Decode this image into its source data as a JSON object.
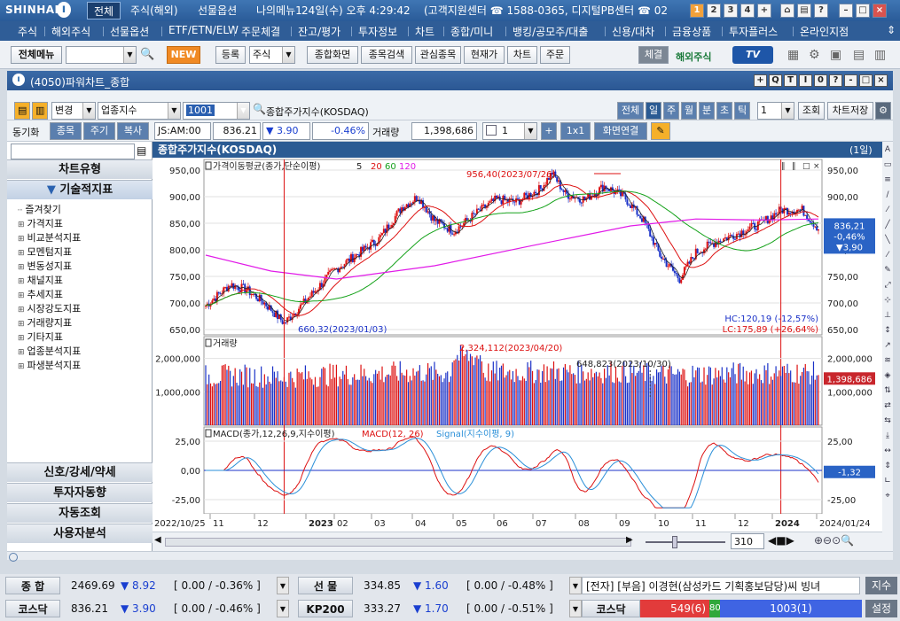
{
  "titlebar": {
    "logo": "SHINHAN",
    "tabs": [
      "전체",
      "주식(해외)",
      "선물옵션",
      "나의메뉴1"
    ],
    "datetime": "24일(수) 오후 4:29:42",
    "support": "(고객지원센터 ☎ 1588-0365, 디지털PB센터 ☎ 02",
    "win_buttons": [
      "1",
      "2",
      "3",
      "4",
      "+"
    ]
  },
  "menu": [
    "주식",
    "해외주식",
    "선물옵션",
    "ETF/ETN/ELW",
    "주문체결",
    "잔고/평가",
    "투자정보",
    "차트",
    "종합/미니",
    "뱅킹/공모주/대출",
    "신용/대차",
    "금융상품",
    "투자플러스",
    "온라인지점"
  ],
  "toolbar": {
    "all_menu": "전체메뉴",
    "new": "NEW",
    "register": "등록",
    "stock": "주식",
    "items": [
      "종합화면",
      "종목검색",
      "관심종목",
      "현재가",
      "차트",
      "주문"
    ],
    "fill": "체결",
    "overseas": "해외주식",
    "tv": "TV"
  },
  "window": {
    "title": "(4050)파워차트_종합",
    "buttons": [
      "+",
      "Q",
      "T",
      "I",
      "0",
      "?",
      "-",
      "□",
      "×"
    ]
  },
  "controls": {
    "change": "변경",
    "category": "업종지수",
    "code": "1001",
    "name": "종합주가지수(KOSDAQ)",
    "right_tabs": [
      "전체",
      "일",
      "주",
      "월",
      "분",
      "초",
      "틱"
    ],
    "period": "1",
    "lookup": "조회",
    "save": "차트저장"
  },
  "row2": {
    "sync": "동기화",
    "tabs": [
      "종목",
      "주기",
      "복사"
    ],
    "market": "JS:AM:00",
    "price": "836.21",
    "change": "▼ 3.90",
    "pct": "-0.46%",
    "vol_label": "거래량",
    "volume": "1,398,686",
    "count": "1",
    "ratio": "1x1",
    "link": "화면연결"
  },
  "sidebar": {
    "chart_type": "차트유형",
    "tech": "기술적지표",
    "tree": [
      "즐겨찾기",
      "가격지표",
      "비교분석지표",
      "모멘텀지표",
      "변동성지표",
      "채널지표",
      "추세지표",
      "시장강도지표",
      "거래량지표",
      "기타지표",
      "업종분석지표",
      "파생분석지표"
    ],
    "bottom": [
      "신호/강세/약세",
      "투자자동향",
      "자동조회",
      "사용자분석"
    ]
  },
  "chart": {
    "header": "종합주가지수(KOSDAQ)",
    "period": "(1일)",
    "price_legend": "가격이동평균(종가,단순이평)",
    "ma": [
      "5",
      "20",
      "60",
      "120"
    ],
    "price_axis": [
      "950,00",
      "900,00",
      "850,00",
      "800,00",
      "750,00",
      "700,00",
      "650,00"
    ],
    "high_ann": "956,40(2023/07/26)",
    "low_ann": "660,32(2023/01/03)",
    "hc": "HC:120,19 (-12,57%)",
    "lc": "LC:175,89 (+26,64%)",
    "last_price": "836,21",
    "last_pct": "-0,46%",
    "last_chg": "▼3,90",
    "vol_legend": "거래량",
    "vol_axis": [
      "2,000,000",
      "1,000,000"
    ],
    "vol_high": "2,324,112(2023/04/20)",
    "vol_ann": "648,823(2023/10/30)",
    "vol_last": "1,398,686",
    "macd_legend": "MACD(종가,12,26,9,지수이평)",
    "macd_name": "MACD(12, 26)",
    "signal_name": "Signal(지수이평, 9)",
    "macd_axis": [
      "25,00",
      "0,00",
      "-25,00"
    ],
    "macd_last": "-1,32",
    "x_labels": [
      "2022/10/25",
      "11",
      "12",
      "2023",
      "02",
      "03",
      "04",
      "05",
      "06",
      "07",
      "08",
      "09",
      "10",
      "11",
      "12",
      "2024",
      "2024/01/24"
    ],
    "bars_count": "310"
  },
  "status": {
    "r1": [
      {
        "name": "종 합",
        "price": "2469.69",
        "chg": "▼ 8.92",
        "box": "[ 0.00  / -0.36% ]"
      },
      {
        "name": "선 물",
        "price": "334.85",
        "chg": "▼ 1.60",
        "box": "[ 0.00  / -0.48% ]"
      }
    ],
    "r2": [
      {
        "name": "코스닥",
        "price": "836.21",
        "chg": "▼ 3.90",
        "box": "[ 0.00  / -0.46% ]"
      },
      {
        "name": "KP200",
        "price": "333.27",
        "chg": "▼ 1.70",
        "box": "[ 0.00  / -0.51% ]"
      }
    ],
    "news": "[전자] [부음] 이경현(삼성카드 기획홍보담당)씨 빙녀",
    "news_btn": "지수",
    "kosdaq": "코스닥",
    "adv": "549(6)",
    "flat": "80",
    "dec": "1003(1)",
    "settings": "설정"
  }
}
